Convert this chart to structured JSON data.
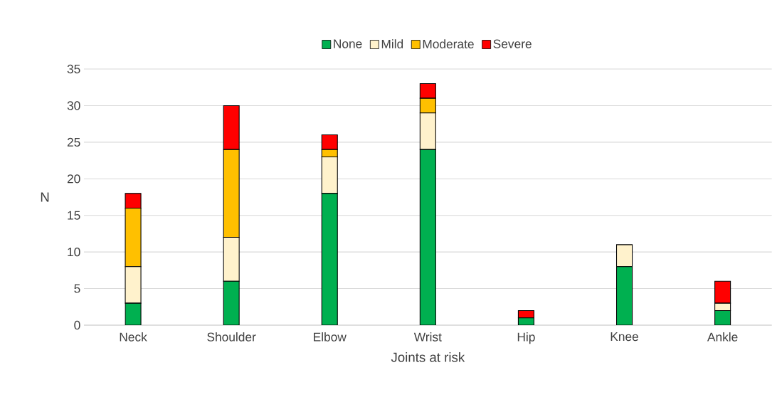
{
  "chart_data": {
    "type": "bar",
    "stacked": true,
    "xlabel": "Joints at risk",
    "ylabel": "N",
    "categories": [
      "Neck",
      "Shoulder",
      "Elbow",
      "Wrist",
      "Hip",
      "Knee",
      "Ankle"
    ],
    "series": [
      {
        "name": "None",
        "color": "#00b050",
        "values": [
          3,
          6,
          18,
          24,
          1,
          8,
          2
        ]
      },
      {
        "name": "Mild",
        "color": "#fff2cc",
        "values": [
          5,
          6,
          5,
          5,
          0,
          3,
          1
        ]
      },
      {
        "name": "Moderate",
        "color": "#ffc000",
        "values": [
          8,
          12,
          1,
          2,
          0,
          0,
          0
        ]
      },
      {
        "name": "Severe",
        "color": "#ff0000",
        "values": [
          2,
          6,
          2,
          2,
          1,
          0,
          3
        ]
      }
    ],
    "ylim": [
      0,
      35
    ],
    "yticks": [
      0,
      5,
      10,
      15,
      20,
      25,
      30,
      35
    ],
    "grid": "y",
    "legend": "top"
  }
}
